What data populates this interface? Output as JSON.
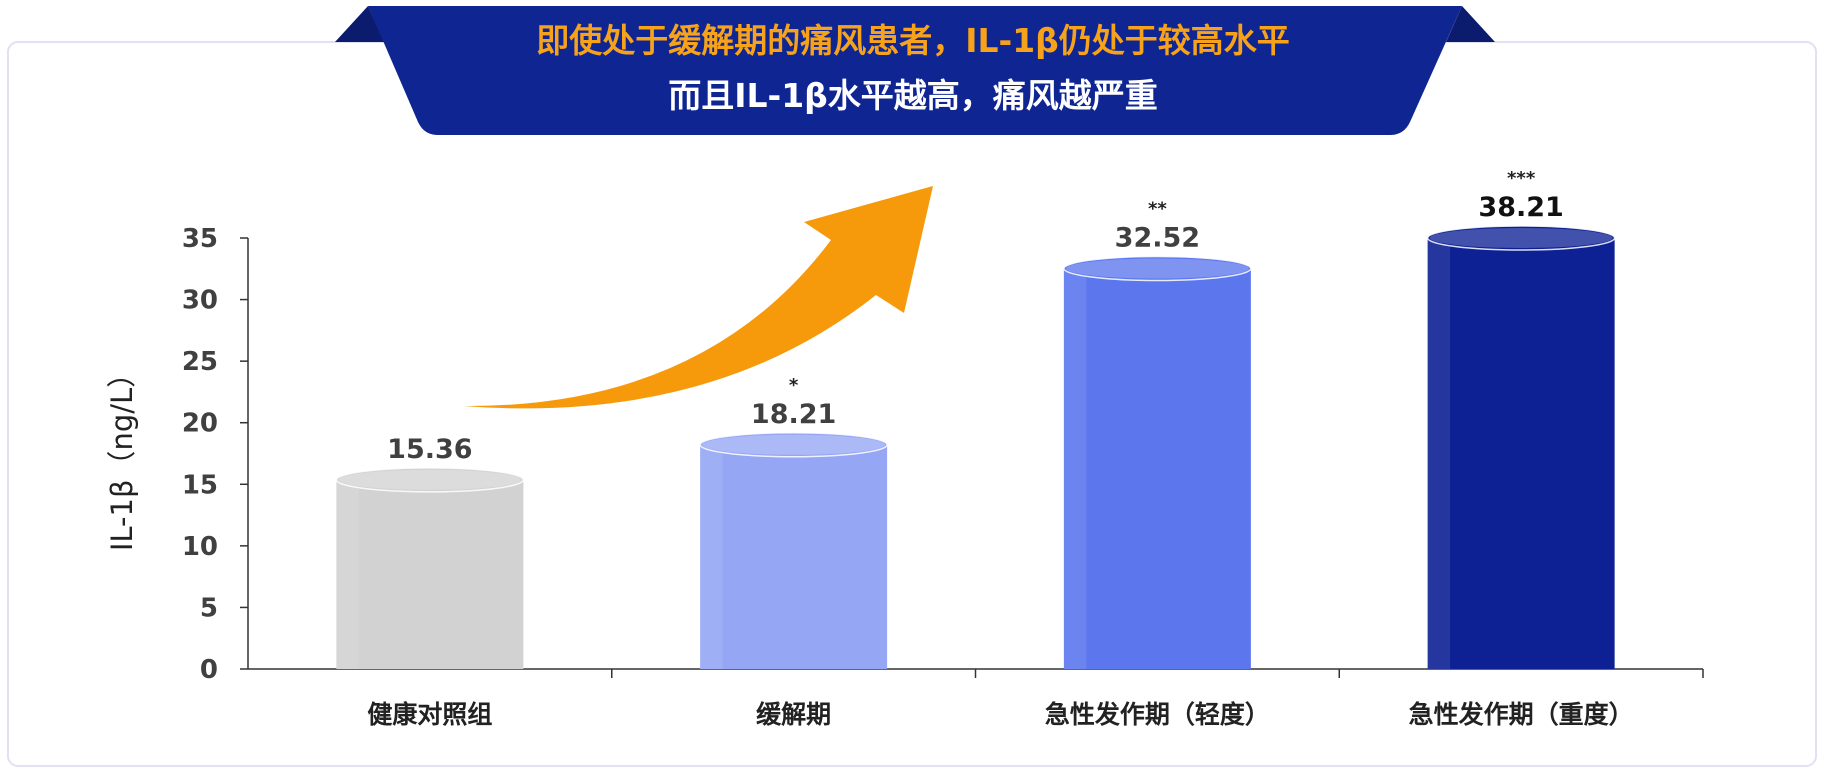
{
  "banner": {
    "line1": "即使处于缓解期的痛风患者，IL-1β仍处于较高水平",
    "line2": "而且IL-1β水平越高，痛风越严重"
  },
  "chart_data": {
    "type": "bar",
    "title": "",
    "xlabel": "",
    "ylabel": "IL-1β（ng/L）",
    "ylim": [
      0,
      35
    ],
    "yticks": [
      0,
      5,
      10,
      15,
      20,
      25,
      30,
      35
    ],
    "grid": false,
    "legend": "none",
    "categories": [
      "健康对照组",
      "缓解期",
      "急性发作期（轻度）",
      "急性发作期（重度）"
    ],
    "values": [
      15.36,
      18.21,
      32.52,
      38.21
    ],
    "value_labels": [
      "15.36",
      "18.21",
      "32.52",
      "38.21"
    ],
    "significance": [
      "",
      "*",
      "**",
      "***"
    ],
    "colors": [
      "#D3D2D3",
      "#95A6F5",
      "#5C77EE",
      "#0D2194"
    ]
  },
  "colors": {
    "banner": "#0F2592",
    "banner_line1": "#F7A21B",
    "banner_line2": "#FFFFFF",
    "arrow": "#F69A0B",
    "axis": "#333333",
    "text": "#404040"
  }
}
